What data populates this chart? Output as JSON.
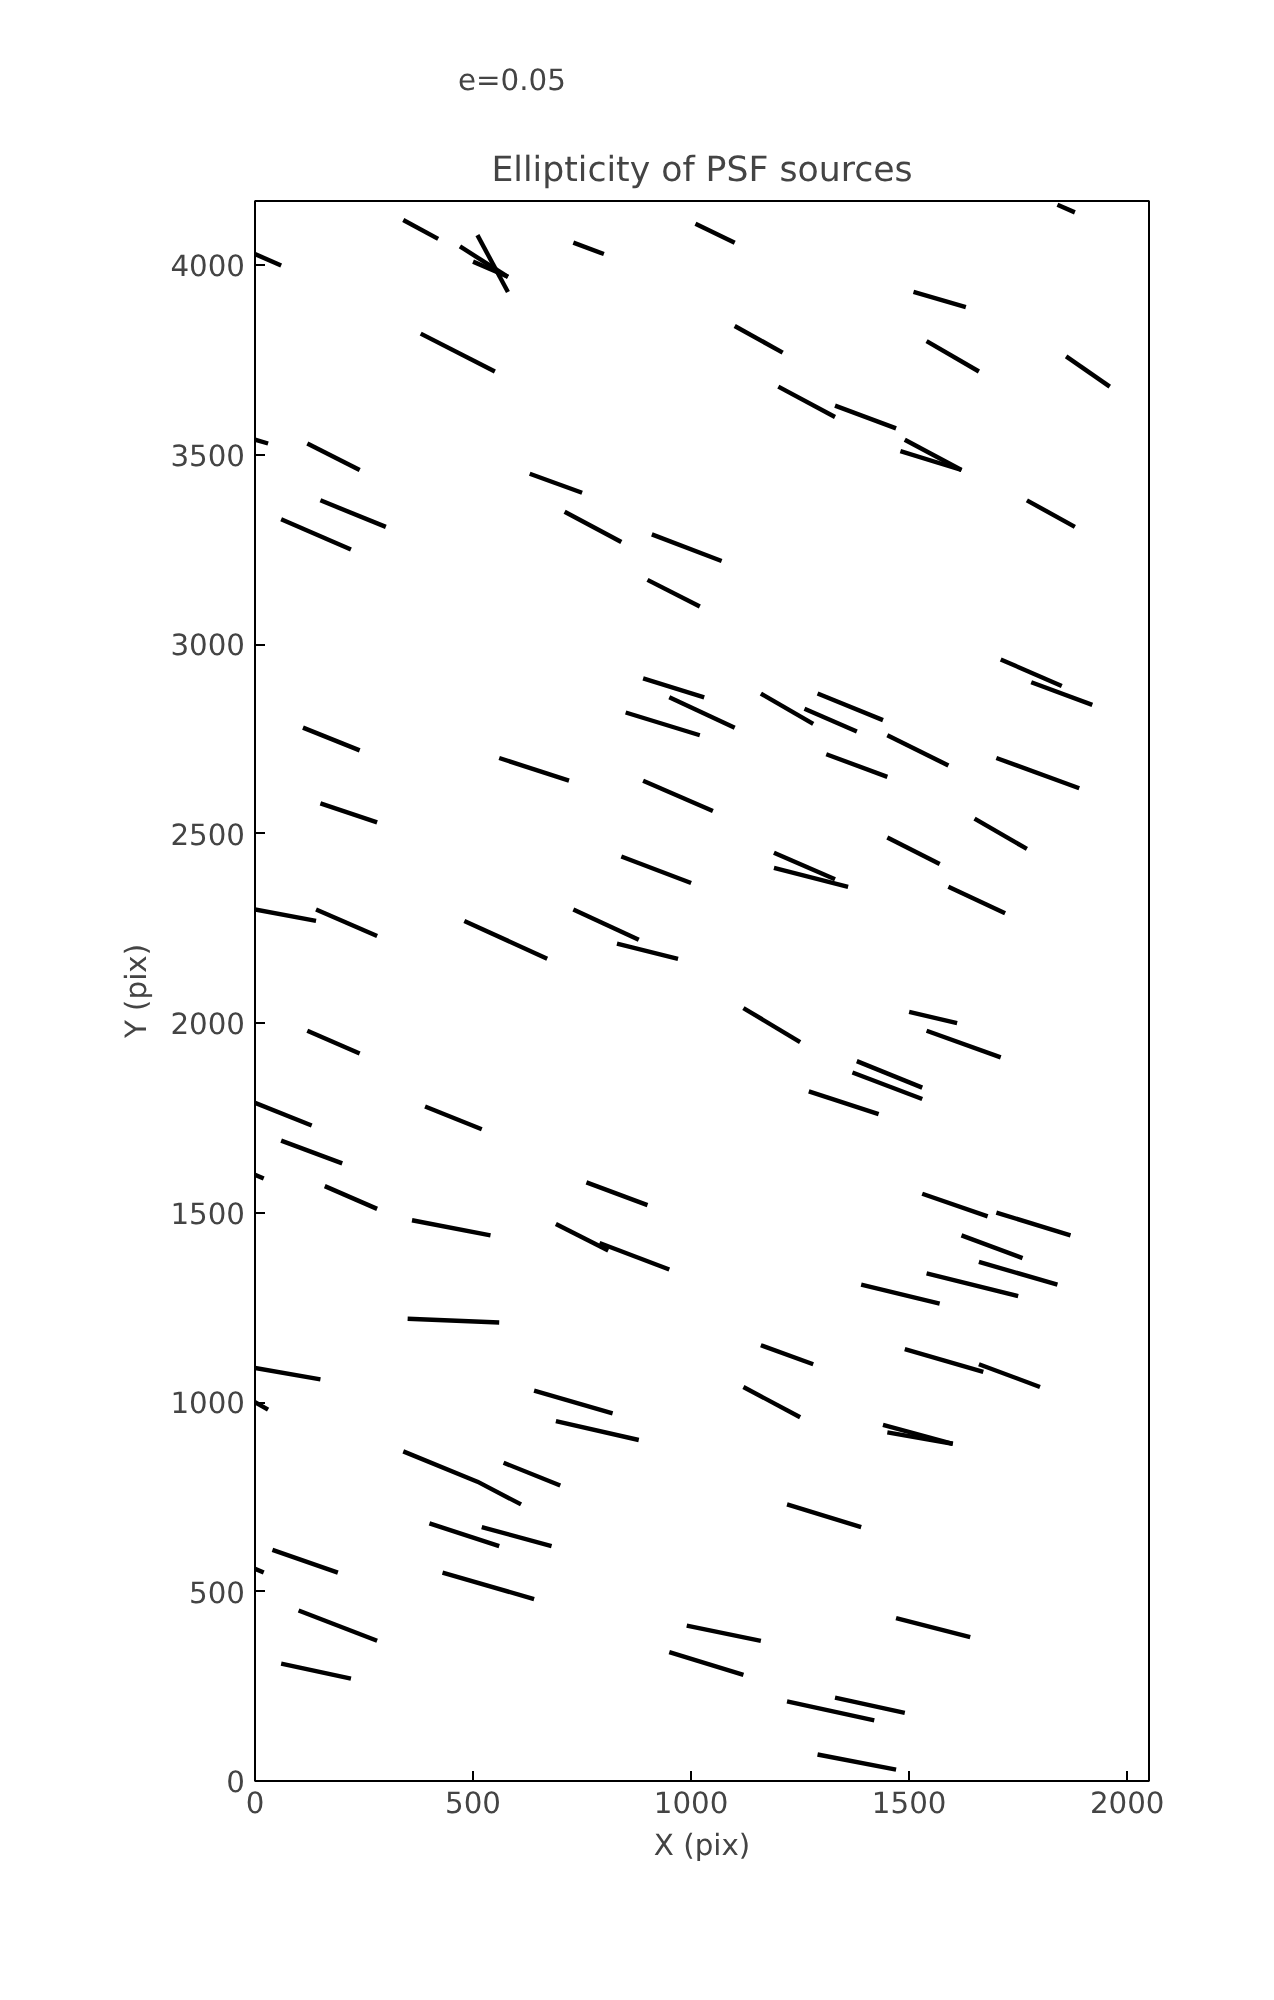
{
  "chart_data": {
    "type": "line",
    "title": "Ellipticity of PSF sources",
    "xlabel": "X (pix)",
    "ylabel": "Y (pix)",
    "xlim": [
      0,
      2050
    ],
    "ylim": [
      0,
      4170
    ],
    "xticks": [
      0,
      500,
      1000,
      1500,
      2000
    ],
    "yticks": [
      0,
      500,
      1000,
      1500,
      2000,
      2500,
      3000,
      3500,
      4000
    ],
    "grid": false,
    "legend": "top left",
    "line_style": "solid",
    "marker": "none",
    "series": [
      {
        "name": "e=0.05",
        "color": "#000000",
        "x": [
          0,
          60
        ],
        "values": [
          4030,
          4000
        ]
      },
      {
        "color": "#000000",
        "x": [
          340,
          420
        ],
        "values": [
          4120,
          4070
        ]
      },
      {
        "color": "#000000",
        "x": [
          470,
          580
        ],
        "values": [
          4050,
          3970
        ]
      },
      {
        "color": "#000000",
        "x": [
          510,
          580
        ],
        "values": [
          4080,
          3930
        ]
      },
      {
        "color": "#000000",
        "x": [
          500,
          580
        ],
        "values": [
          4010,
          3970
        ]
      },
      {
        "color": "#000000",
        "x": [
          730,
          800
        ],
        "values": [
          4060,
          4030
        ]
      },
      {
        "color": "#000000",
        "x": [
          1010,
          1100
        ],
        "values": [
          4110,
          4060
        ]
      },
      {
        "color": "#000000",
        "x": [
          1840,
          1880
        ],
        "values": [
          4160,
          4140
        ]
      },
      {
        "color": "#000000",
        "x": [
          380,
          550
        ],
        "values": [
          3820,
          3720
        ]
      },
      {
        "color": "#000000",
        "x": [
          1100,
          1210
        ],
        "values": [
          3840,
          3770
        ]
      },
      {
        "color": "#000000",
        "x": [
          1510,
          1630
        ],
        "values": [
          3930,
          3890
        ]
      },
      {
        "color": "#000000",
        "x": [
          1540,
          1660
        ],
        "values": [
          3800,
          3720
        ]
      },
      {
        "color": "#000000",
        "x": [
          1860,
          1960
        ],
        "values": [
          3760,
          3680
        ]
      },
      {
        "color": "#000000",
        "x": [
          1200,
          1330
        ],
        "values": [
          3680,
          3600
        ]
      },
      {
        "color": "#000000",
        "x": [
          1330,
          1470
        ],
        "values": [
          3630,
          3570
        ]
      },
      {
        "color": "#000000",
        "x": [
          1490,
          1620
        ],
        "values": [
          3540,
          3460
        ]
      },
      {
        "color": "#000000",
        "x": [
          1480,
          1620
        ],
        "values": [
          3510,
          3460
        ]
      },
      {
        "color": "#000000",
        "x": [
          0,
          30
        ],
        "values": [
          3540,
          3530
        ]
      },
      {
        "color": "#000000",
        "x": [
          120,
          240
        ],
        "values": [
          3530,
          3460
        ]
      },
      {
        "color": "#000000",
        "x": [
          150,
          300
        ],
        "values": [
          3380,
          3310
        ]
      },
      {
        "color": "#000000",
        "x": [
          60,
          220
        ],
        "values": [
          3330,
          3250
        ]
      },
      {
        "color": "#000000",
        "x": [
          630,
          750
        ],
        "values": [
          3450,
          3400
        ]
      },
      {
        "color": "#000000",
        "x": [
          710,
          840
        ],
        "values": [
          3350,
          3270
        ]
      },
      {
        "color": "#000000",
        "x": [
          910,
          1070
        ],
        "values": [
          3290,
          3220
        ]
      },
      {
        "color": "#000000",
        "x": [
          900,
          1020
        ],
        "values": [
          3170,
          3100
        ]
      },
      {
        "color": "#000000",
        "x": [
          1770,
          1880
        ],
        "values": [
          3380,
          3310
        ]
      },
      {
        "color": "#000000",
        "x": [
          890,
          1030
        ],
        "values": [
          2910,
          2860
        ]
      },
      {
        "color": "#000000",
        "x": [
          850,
          1020
        ],
        "values": [
          2820,
          2760
        ]
      },
      {
        "color": "#000000",
        "x": [
          950,
          1100
        ],
        "values": [
          2860,
          2780
        ]
      },
      {
        "color": "#000000",
        "x": [
          1160,
          1280
        ],
        "values": [
          2870,
          2790
        ]
      },
      {
        "color": "#000000",
        "x": [
          1260,
          1380
        ],
        "values": [
          2830,
          2770
        ]
      },
      {
        "color": "#000000",
        "x": [
          1290,
          1440
        ],
        "values": [
          2870,
          2800
        ]
      },
      {
        "color": "#000000",
        "x": [
          1710,
          1850
        ],
        "values": [
          2960,
          2890
        ]
      },
      {
        "color": "#000000",
        "x": [
          1780,
          1920
        ],
        "values": [
          2900,
          2840
        ]
      },
      {
        "color": "#000000",
        "x": [
          1450,
          1590
        ],
        "values": [
          2760,
          2680
        ]
      },
      {
        "color": "#000000",
        "x": [
          110,
          240
        ],
        "values": [
          2780,
          2720
        ]
      },
      {
        "color": "#000000",
        "x": [
          560,
          720
        ],
        "values": [
          2700,
          2640
        ]
      },
      {
        "color": "#000000",
        "x": [
          1310,
          1450
        ],
        "values": [
          2710,
          2650
        ]
      },
      {
        "color": "#000000",
        "x": [
          1700,
          1890
        ],
        "values": [
          2700,
          2620
        ]
      },
      {
        "color": "#000000",
        "x": [
          890,
          1050
        ],
        "values": [
          2640,
          2560
        ]
      },
      {
        "color": "#000000",
        "x": [
          150,
          280
        ],
        "values": [
          2580,
          2530
        ]
      },
      {
        "color": "#000000",
        "x": [
          1450,
          1570
        ],
        "values": [
          2490,
          2420
        ]
      },
      {
        "color": "#000000",
        "x": [
          1650,
          1770
        ],
        "values": [
          2540,
          2460
        ]
      },
      {
        "color": "#000000",
        "x": [
          1190,
          1330
        ],
        "values": [
          2450,
          2380
        ]
      },
      {
        "color": "#000000",
        "x": [
          1190,
          1360
        ],
        "values": [
          2410,
          2360
        ]
      },
      {
        "color": "#000000",
        "x": [
          840,
          1000
        ],
        "values": [
          2440,
          2370
        ]
      },
      {
        "color": "#000000",
        "x": [
          1590,
          1720
        ],
        "values": [
          2360,
          2290
        ]
      },
      {
        "color": "#000000",
        "x": [
          0,
          140
        ],
        "values": [
          2300,
          2270
        ]
      },
      {
        "color": "#000000",
        "x": [
          140,
          280
        ],
        "values": [
          2300,
          2230
        ]
      },
      {
        "color": "#000000",
        "x": [
          480,
          670
        ],
        "values": [
          2270,
          2170
        ]
      },
      {
        "color": "#000000",
        "x": [
          730,
          880
        ],
        "values": [
          2300,
          2220
        ]
      },
      {
        "color": "#000000",
        "x": [
          830,
          970
        ],
        "values": [
          2210,
          2170
        ]
      },
      {
        "color": "#000000",
        "x": [
          1120,
          1250
        ],
        "values": [
          2040,
          1950
        ]
      },
      {
        "color": "#000000",
        "x": [
          1500,
          1610
        ],
        "values": [
          2030,
          2000
        ]
      },
      {
        "color": "#000000",
        "x": [
          1540,
          1710
        ],
        "values": [
          1980,
          1910
        ]
      },
      {
        "color": "#000000",
        "x": [
          1380,
          1530
        ],
        "values": [
          1900,
          1830
        ]
      },
      {
        "color": "#000000",
        "x": [
          1370,
          1530
        ],
        "values": [
          1870,
          1800
        ]
      },
      {
        "color": "#000000",
        "x": [
          1270,
          1430
        ],
        "values": [
          1820,
          1760
        ]
      },
      {
        "color": "#000000",
        "x": [
          120,
          240
        ],
        "values": [
          1980,
          1920
        ]
      },
      {
        "color": "#000000",
        "x": [
          0,
          130
        ],
        "values": [
          1790,
          1730
        ]
      },
      {
        "color": "#000000",
        "x": [
          60,
          200
        ],
        "values": [
          1690,
          1630
        ]
      },
      {
        "color": "#000000",
        "x": [
          390,
          520
        ],
        "values": [
          1780,
          1720
        ]
      },
      {
        "color": "#000000",
        "x": [
          0,
          20
        ],
        "values": [
          1600,
          1590
        ]
      },
      {
        "color": "#000000",
        "x": [
          160,
          280
        ],
        "values": [
          1570,
          1510
        ]
      },
      {
        "color": "#000000",
        "x": [
          360,
          540
        ],
        "values": [
          1480,
          1440
        ]
      },
      {
        "color": "#000000",
        "x": [
          690,
          810
        ],
        "values": [
          1470,
          1400
        ]
      },
      {
        "color": "#000000",
        "x": [
          790,
          950
        ],
        "values": [
          1420,
          1350
        ]
      },
      {
        "color": "#000000",
        "x": [
          760,
          900
        ],
        "values": [
          1580,
          1520
        ]
      },
      {
        "color": "#000000",
        "x": [
          1530,
          1680
        ],
        "values": [
          1550,
          1490
        ]
      },
      {
        "color": "#000000",
        "x": [
          1700,
          1870
        ],
        "values": [
          1500,
          1440
        ]
      },
      {
        "color": "#000000",
        "x": [
          1620,
          1760
        ],
        "values": [
          1440,
          1380
        ]
      },
      {
        "color": "#000000",
        "x": [
          1660,
          1840
        ],
        "values": [
          1370,
          1310
        ]
      },
      {
        "color": "#000000",
        "x": [
          1540,
          1750
        ],
        "values": [
          1340,
          1280
        ]
      },
      {
        "color": "#000000",
        "x": [
          1390,
          1570
        ],
        "values": [
          1310,
          1260
        ]
      },
      {
        "color": "#000000",
        "x": [
          350,
          560
        ],
        "values": [
          1220,
          1210
        ]
      },
      {
        "color": "#000000",
        "x": [
          0,
          150
        ],
        "values": [
          1090,
          1060
        ]
      },
      {
        "color": "#000000",
        "x": [
          0,
          30
        ],
        "values": [
          1000,
          980
        ]
      },
      {
        "color": "#000000",
        "x": [
          640,
          820
        ],
        "values": [
          1030,
          970
        ]
      },
      {
        "color": "#000000",
        "x": [
          690,
          880
        ],
        "values": [
          950,
          900
        ]
      },
      {
        "color": "#000000",
        "x": [
          1160,
          1280
        ],
        "values": [
          1150,
          1100
        ]
      },
      {
        "color": "#000000",
        "x": [
          1120,
          1250
        ],
        "values": [
          1040,
          960
        ]
      },
      {
        "color": "#000000",
        "x": [
          1490,
          1670
        ],
        "values": [
          1140,
          1080
        ]
      },
      {
        "color": "#000000",
        "x": [
          1660,
          1800
        ],
        "values": [
          1100,
          1040
        ]
      },
      {
        "color": "#000000",
        "x": [
          1440,
          1600
        ],
        "values": [
          940,
          890
        ]
      },
      {
        "color": "#000000",
        "x": [
          1450,
          1600
        ],
        "values": [
          920,
          890
        ]
      },
      {
        "color": "#000000",
        "x": [
          340,
          510,
          610
        ],
        "values": [
          870,
          790,
          730
        ]
      },
      {
        "color": "#000000",
        "x": [
          570,
          700
        ],
        "values": [
          840,
          780
        ]
      },
      {
        "color": "#000000",
        "x": [
          400,
          560
        ],
        "values": [
          680,
          620
        ]
      },
      {
        "color": "#000000",
        "x": [
          520,
          680
        ],
        "values": [
          670,
          620
        ]
      },
      {
        "color": "#000000",
        "x": [
          430,
          640
        ],
        "values": [
          550,
          480
        ]
      },
      {
        "color": "#000000",
        "x": [
          40,
          190
        ],
        "values": [
          610,
          550
        ]
      },
      {
        "color": "#000000",
        "x": [
          100,
          280
        ],
        "values": [
          450,
          370
        ]
      },
      {
        "color": "#000000",
        "x": [
          60,
          220
        ],
        "values": [
          310,
          270
        ]
      },
      {
        "color": "#000000",
        "x": [
          0,
          20
        ],
        "values": [
          560,
          550
        ]
      },
      {
        "color": "#000000",
        "x": [
          990,
          1160
        ],
        "values": [
          410,
          370
        ]
      },
      {
        "color": "#000000",
        "x": [
          950,
          1120
        ],
        "values": [
          340,
          280
        ]
      },
      {
        "color": "#000000",
        "x": [
          1220,
          1390
        ],
        "values": [
          730,
          670
        ]
      },
      {
        "color": "#000000",
        "x": [
          1470,
          1640
        ],
        "values": [
          430,
          380
        ]
      },
      {
        "color": "#000000",
        "x": [
          1220,
          1420
        ],
        "values": [
          210,
          160
        ]
      },
      {
        "color": "#000000",
        "x": [
          1330,
          1490
        ],
        "values": [
          220,
          180
        ]
      },
      {
        "color": "#000000",
        "x": [
          1290,
          1470
        ],
        "values": [
          70,
          30
        ]
      }
    ]
  }
}
